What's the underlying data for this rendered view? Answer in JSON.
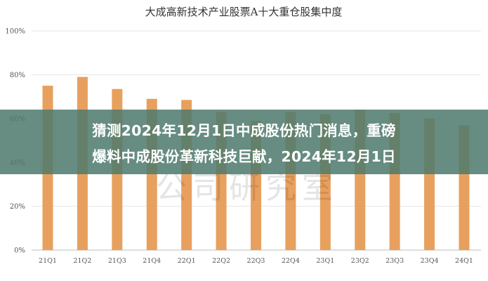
{
  "chart_data": {
    "type": "bar",
    "title": "大成高新技术产业股票A十大重仓股集中度",
    "categories": [
      "21Q1",
      "21Q2",
      "21Q3",
      "21Q4",
      "22Q1",
      "22Q2",
      "22Q3",
      "22Q4",
      "23Q1",
      "23Q2",
      "23Q3",
      "23Q4",
      "24Q1"
    ],
    "values": [
      75,
      79,
      73.5,
      69,
      68.5,
      63,
      59,
      63,
      62,
      64,
      62.5,
      60,
      57
    ],
    "ylim": [
      0,
      100
    ],
    "yticks": [
      "0%",
      "20%",
      "40%",
      "60%",
      "80%",
      "100%"
    ],
    "grid": true,
    "bar_color": "#e8a05e",
    "watermark": "公司研究室"
  },
  "banner": {
    "line1": "猜测2024年12月1日中成股份热门消息，重磅",
    "line2": "爆料中成股份革新科技巨献，2024年12月1日"
  }
}
